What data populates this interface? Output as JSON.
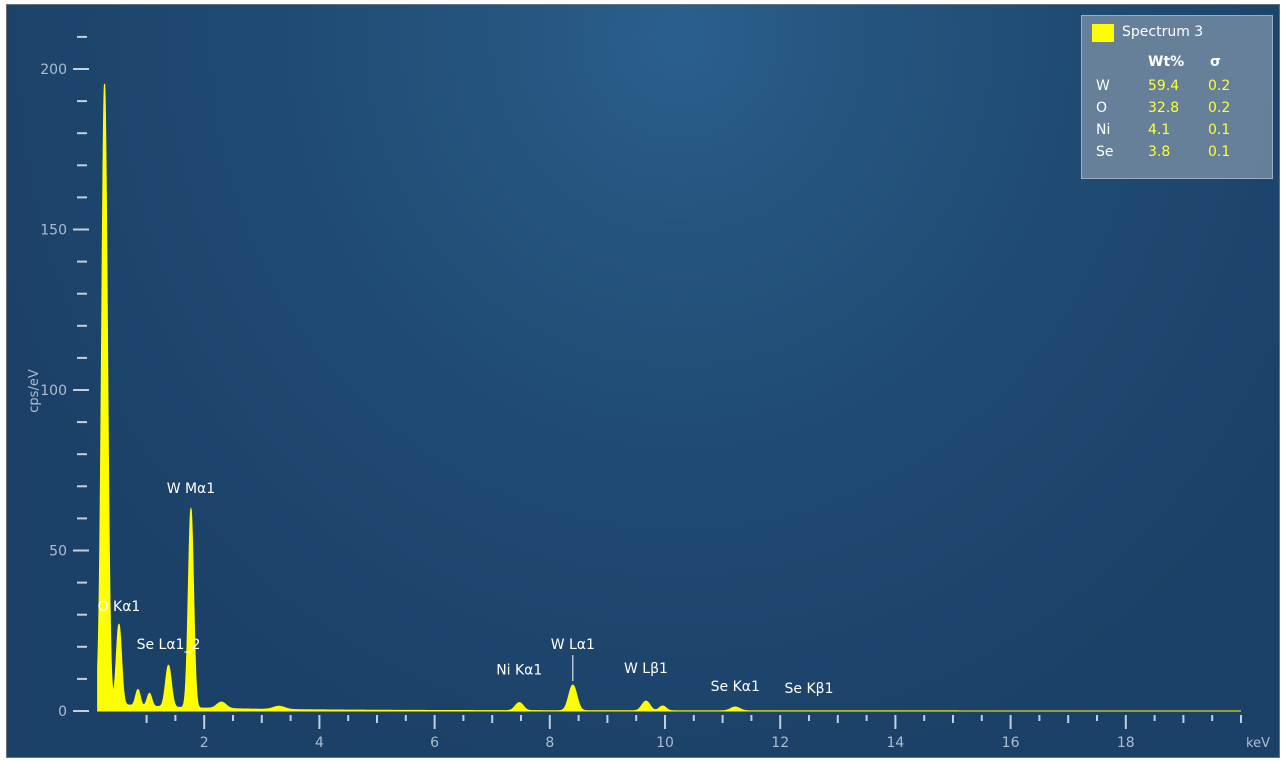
{
  "chart_data": {
    "type": "area",
    "series_name": "Spectrum 3",
    "color": "#ffff00",
    "xlabel": "keV",
    "ylabel": "cps/eV",
    "xlim": [
      0,
      20
    ],
    "ylim": [
      0,
      200
    ],
    "x_ticks": [
      2,
      4,
      6,
      8,
      10,
      12,
      14,
      16,
      18
    ],
    "y_ticks": [
      0,
      50,
      100,
      150,
      200
    ],
    "peaks": [
      {
        "x": 0.27,
        "y": 193,
        "w": 0.05
      },
      {
        "x": 0.52,
        "y": 25,
        "w": 0.045
      },
      {
        "x": 0.85,
        "y": 5,
        "w": 0.04
      },
      {
        "x": 1.05,
        "y": 4,
        "w": 0.04
      },
      {
        "x": 1.38,
        "y": 13,
        "w": 0.05
      },
      {
        "x": 1.77,
        "y": 62,
        "w": 0.045
      },
      {
        "x": 2.3,
        "y": 2,
        "w": 0.08
      },
      {
        "x": 3.3,
        "y": 1,
        "w": 0.1
      },
      {
        "x": 7.47,
        "y": 2.5,
        "w": 0.07
      },
      {
        "x": 8.4,
        "y": 8,
        "w": 0.07
      },
      {
        "x": 9.67,
        "y": 3,
        "w": 0.07
      },
      {
        "x": 9.96,
        "y": 1.5,
        "w": 0.06
      },
      {
        "x": 11.22,
        "y": 1.2,
        "w": 0.08
      }
    ],
    "peak_labels": [
      {
        "text": "O Kα1",
        "x": 0.52,
        "y": 25
      },
      {
        "text": "Se Lα1_2",
        "x": 1.38,
        "y": 13
      },
      {
        "text": "W Mα1",
        "x": 1.77,
        "y": 62
      },
      {
        "text": "Ni Kα1",
        "x": 7.47,
        "y": 2.5
      },
      {
        "text": "W Lα1",
        "x": 8.4,
        "y": 8
      },
      {
        "text": "W Lβ1",
        "x": 9.67,
        "y": 3
      },
      {
        "text": "Se Kα1",
        "x": 11.22,
        "y": 1.2
      },
      {
        "text": "Se Kβ1",
        "x": 12.5,
        "y": 0.5
      }
    ]
  },
  "legend": {
    "series": "Spectrum 3",
    "col_wt": "Wt%",
    "col_sigma": "σ",
    "rows": [
      {
        "element": "W",
        "wt": "59.4",
        "sigma": "0.2"
      },
      {
        "element": "O",
        "wt": "32.8",
        "sigma": "0.2"
      },
      {
        "element": "Ni",
        "wt": "4.1",
        "sigma": "0.1"
      },
      {
        "element": "Se",
        "wt": "3.8",
        "sigma": "0.1"
      }
    ]
  }
}
